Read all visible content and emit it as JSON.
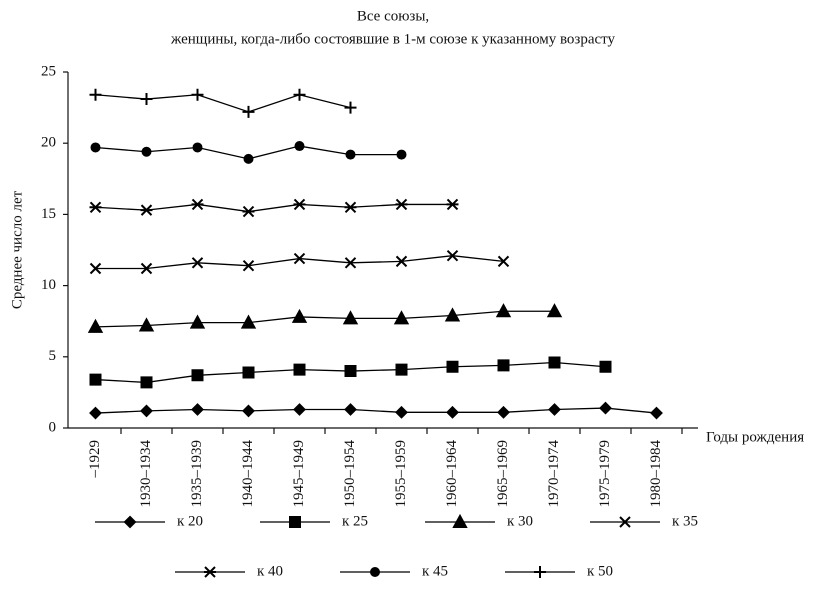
{
  "chart_data": {
    "type": "line",
    "title": "Все союзы,",
    "subtitle": "женщины, когда-либо состоявшие в 1-м союзе к указанному возрасту",
    "x_label": "Годы рождения",
    "y_label": "Среднее число лет",
    "categories": [
      "–1929",
      "1930–1934",
      "1935–1939",
      "1940–1944",
      "1945–1949",
      "1950–1954",
      "1955–1959",
      "1960–1964",
      "1965–1969",
      "1970–1974",
      "1975–1979",
      "1980–1984"
    ],
    "ylim": [
      0,
      25
    ],
    "yticks": [
      0,
      5,
      10,
      15,
      20,
      25
    ],
    "grid": false,
    "series": [
      {
        "name": "к 20",
        "color": "#000000",
        "marker": "diamond",
        "values": [
          1.05,
          1.2,
          1.3,
          1.2,
          1.3,
          1.3,
          1.1,
          1.1,
          1.1,
          1.3,
          1.4,
          1.05
        ]
      },
      {
        "name": "к 25",
        "color": "#000000",
        "marker": "square",
        "values": [
          3.4,
          3.2,
          3.7,
          3.9,
          4.1,
          4.0,
          4.1,
          4.3,
          4.4,
          4.6,
          4.3,
          null
        ]
      },
      {
        "name": "к 30",
        "color": "#000000",
        "marker": "triangle",
        "values": [
          7.1,
          7.2,
          7.4,
          7.4,
          7.8,
          7.7,
          7.7,
          7.9,
          8.2,
          8.2,
          null,
          null
        ]
      },
      {
        "name": "к 35",
        "color": "#000000",
        "marker": "x",
        "values": [
          11.2,
          11.2,
          11.6,
          11.4,
          11.9,
          11.6,
          11.7,
          12.1,
          11.7,
          null,
          null,
          null
        ]
      },
      {
        "name": "к 40",
        "color": "#000000",
        "marker": "asterisk",
        "values": [
          15.5,
          15.3,
          15.7,
          15.2,
          15.7,
          15.5,
          15.7,
          15.7,
          null,
          null,
          null,
          null
        ]
      },
      {
        "name": "к 45",
        "color": "#000000",
        "marker": "circle",
        "values": [
          19.7,
          19.4,
          19.7,
          18.9,
          19.8,
          19.2,
          19.2,
          null,
          null,
          null,
          null,
          null
        ]
      },
      {
        "name": "к 50",
        "color": "#000000",
        "marker": "plus",
        "values": [
          23.4,
          23.1,
          23.4,
          22.2,
          23.4,
          22.5,
          null,
          null,
          null,
          null,
          null,
          null
        ]
      }
    ]
  }
}
